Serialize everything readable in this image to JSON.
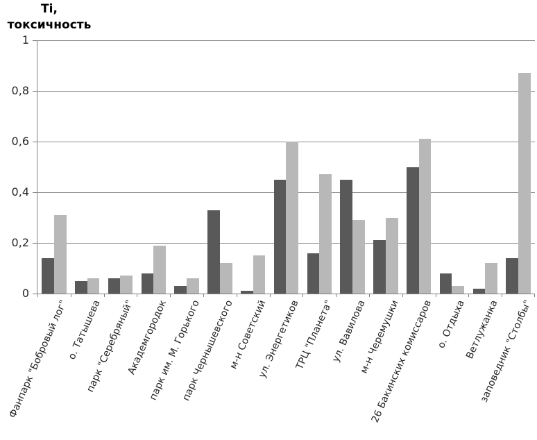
{
  "title": {
    "line1": "Ti,",
    "line2": "токсичность"
  },
  "colors": {
    "series_dark": "#595959",
    "series_light": "#B8B8B8",
    "axis": "#7F7F7F",
    "gridline": "#8C8C8C",
    "text": "#262626",
    "background": "#FFFFFF"
  },
  "chart_data": {
    "type": "bar",
    "title": "Ti, токсичность",
    "xlabel": "",
    "ylabel": "Ti, токсичность",
    "categories": [
      "Фанпарк \"Бобровый лог\"",
      "о. Татышева",
      "парк \"Серебряный\"",
      "Академгородок",
      "парк им. М. Горького",
      "парк Чернышевского",
      "м-н Советский",
      "ул. Энергетиков",
      "ТРЦ \"Планета\"",
      "ул. Вавилова",
      "м-н Черемушки",
      "26 Бакинских комиссаров",
      "о. Отдыха",
      "Ветлужанка",
      "заповедник \"Столбы\""
    ],
    "series": [
      {
        "name": "series-1-dark-gray",
        "color": "#595959",
        "values": [
          0.14,
          0.05,
          0.06,
          0.08,
          0.03,
          0.33,
          0.01,
          0.45,
          0.16,
          0.45,
          0.21,
          0.5,
          0.08,
          0.02,
          0.14
        ]
      },
      {
        "name": "series-2-light-gray",
        "color": "#B8B8B8",
        "values": [
          0.31,
          0.06,
          0.07,
          0.19,
          0.06,
          0.12,
          0.15,
          0.6,
          0.47,
          0.29,
          0.3,
          0.61,
          0.03,
          0.12,
          0.87
        ]
      }
    ],
    "y_axis": {
      "min": 0,
      "max": 1,
      "step": 0.2,
      "tick_labels": [
        "0",
        "0,2",
        "0,4",
        "0,6",
        "0,8",
        "1"
      ],
      "decimal_separator": ","
    },
    "x_axis": {
      "label_rotation_deg": 66
    },
    "grid": true,
    "legend": "none"
  }
}
